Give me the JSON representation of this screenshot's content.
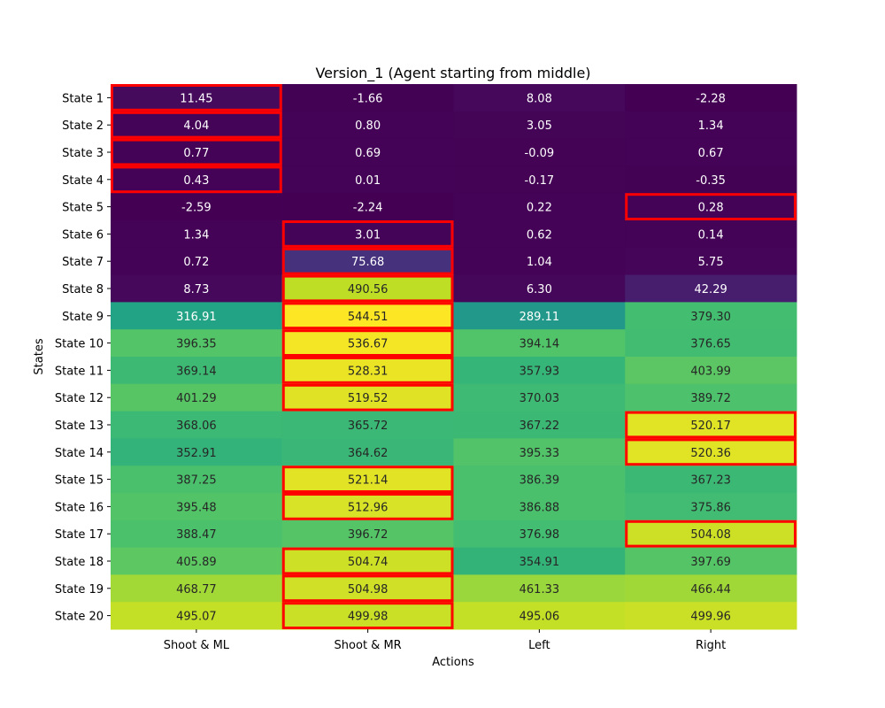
{
  "chart_data": {
    "type": "heatmap",
    "title": "Version_1 (Agent starting from middle)",
    "xlabel": "Actions",
    "ylabel": "States",
    "columns": [
      "Shoot & ML",
      "Shoot & MR",
      "Left",
      "Right"
    ],
    "rows": [
      "State 1",
      "State 2",
      "State 3",
      "State 4",
      "State 5",
      "State 6",
      "State 7",
      "State 8",
      "State 9",
      "State 10",
      "State 11",
      "State 12",
      "State 13",
      "State 14",
      "State 15",
      "State 16",
      "State 17",
      "State 18",
      "State 19",
      "State 20"
    ],
    "values": [
      [
        11.45,
        -1.66,
        8.08,
        -2.28
      ],
      [
        4.04,
        0.8,
        3.05,
        1.34
      ],
      [
        0.77,
        0.69,
        -0.09,
        0.67
      ],
      [
        0.43,
        0.01,
        -0.17,
        -0.35
      ],
      [
        -2.59,
        -2.24,
        0.22,
        0.28
      ],
      [
        1.34,
        3.01,
        0.62,
        0.14
      ],
      [
        0.72,
        75.68,
        1.04,
        5.75
      ],
      [
        8.73,
        490.56,
        6.3,
        42.29
      ],
      [
        316.91,
        544.51,
        289.11,
        379.3
      ],
      [
        396.35,
        536.67,
        394.14,
        376.65
      ],
      [
        369.14,
        528.31,
        357.93,
        403.99
      ],
      [
        401.29,
        519.52,
        370.03,
        389.72
      ],
      [
        368.06,
        365.72,
        367.22,
        520.17
      ],
      [
        352.91,
        364.62,
        395.33,
        520.36
      ],
      [
        387.25,
        521.14,
        386.39,
        367.23
      ],
      [
        395.48,
        512.96,
        386.88,
        375.86
      ],
      [
        388.47,
        396.72,
        376.98,
        504.08
      ],
      [
        405.89,
        504.74,
        354.91,
        397.69
      ],
      [
        468.77,
        504.98,
        461.33,
        466.44
      ],
      [
        495.07,
        499.98,
        495.06,
        499.96
      ]
    ],
    "colormap": "viridis",
    "highlight": "row-maximum",
    "highlight_color": "#ff0000",
    "value_range": [
      -2.59,
      544.51
    ]
  }
}
